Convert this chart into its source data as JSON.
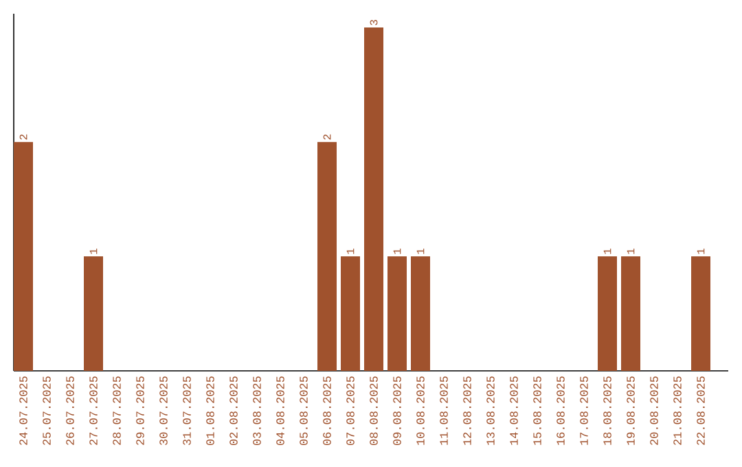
{
  "chart_data": {
    "type": "bar",
    "categories": [
      "24.07.2025",
      "25.07.2025",
      "26.07.2025",
      "27.07.2025",
      "28.07.2025",
      "29.07.2025",
      "30.07.2025",
      "31.07.2025",
      "01.08.2025",
      "02.08.2025",
      "03.08.2025",
      "04.08.2025",
      "05.08.2025",
      "06.08.2025",
      "07.08.2025",
      "08.08.2025",
      "09.08.2025",
      "10.08.2025",
      "11.08.2025",
      "12.08.2025",
      "13.08.2025",
      "14.08.2025",
      "15.08.2025",
      "16.08.2025",
      "17.08.2025",
      "18.08.2025",
      "19.08.2025",
      "20.08.2025",
      "21.08.2025",
      "22.08.2025"
    ],
    "values": [
      2,
      0,
      0,
      1,
      0,
      0,
      0,
      0,
      0,
      0,
      0,
      0,
      0,
      2,
      1,
      3,
      1,
      1,
      0,
      0,
      0,
      0,
      0,
      0,
      0,
      1,
      1,
      0,
      0,
      1
    ],
    "value_labels": [
      "2",
      null,
      null,
      "1",
      null,
      null,
      null,
      null,
      null,
      null,
      null,
      null,
      null,
      "2",
      "1",
      "3",
      "1",
      "1",
      null,
      null,
      null,
      null,
      null,
      null,
      null,
      "1",
      "1",
      null,
      null,
      "1"
    ],
    "color": "#a0522d",
    "ylim": [
      0,
      3.12
    ],
    "tick_labels": "x"
  }
}
